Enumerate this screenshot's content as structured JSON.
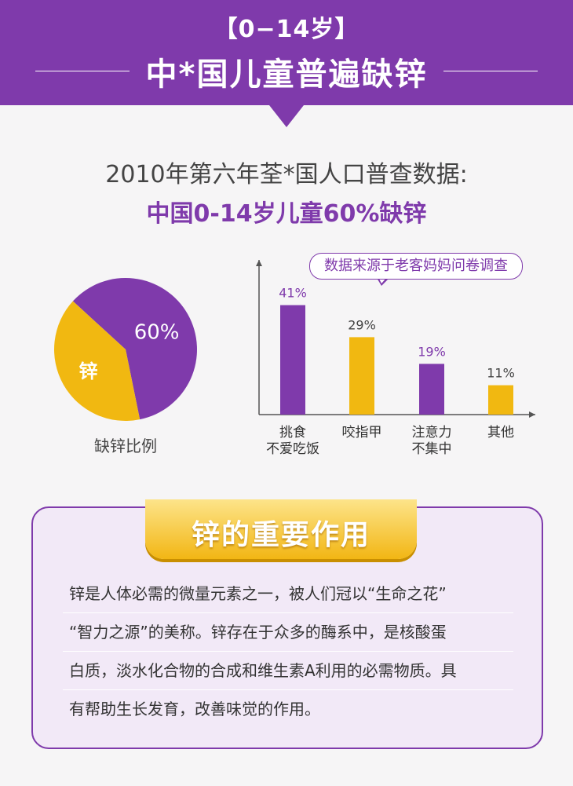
{
  "header": {
    "subtitle": "【0−14岁】",
    "title": "中*国儿童普遍缺锌"
  },
  "census": {
    "line": "2010年第六年荃*国人口普查数据:",
    "highlight": "中国0-14岁儿童60%缺锌"
  },
  "chart_data": [
    {
      "type": "pie",
      "labels": [
        "60%",
        "锌"
      ],
      "values": [
        60,
        40
      ],
      "colors": [
        "#7f3aab",
        "#f1b811"
      ],
      "caption": "缺锌比例"
    },
    {
      "type": "bar",
      "note": "数据来源于老客妈妈问卷调查",
      "categories": [
        [
          "挑食",
          "不爱吃饭"
        ],
        [
          "咬指甲"
        ],
        [
          "注意力",
          "不集中"
        ],
        [
          "其他"
        ]
      ],
      "values": [
        41,
        29,
        19,
        11
      ],
      "data_labels": [
        "41%",
        "29%",
        "19%",
        "11%"
      ],
      "colors": [
        "#7f3aab",
        "#f1b811",
        "#7f3aab",
        "#f1b811"
      ],
      "ylim": [
        0,
        50
      ]
    }
  ],
  "card": {
    "title": "锌的重要作用",
    "lines": [
      "锌是人体必需的微量元素之一，被人们冠以“生命之花”",
      "“智力之源”的美称。锌存在于众多的酶系中，是核酸蛋",
      "白质，淡水化合物的合成和维生素A利用的必需物质。具",
      "有帮助生长发育，改善味觉的作用。"
    ]
  }
}
